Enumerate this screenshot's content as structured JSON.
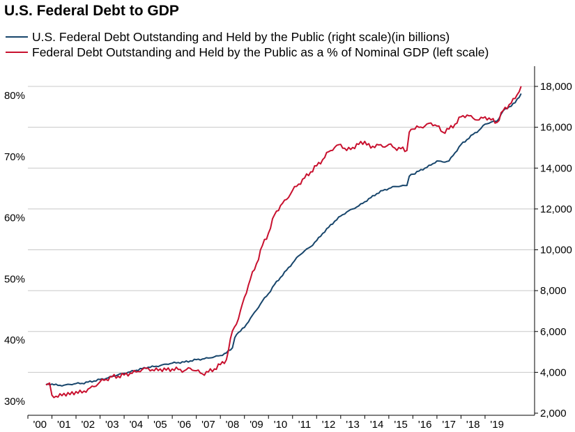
{
  "chart_data": {
    "type": "line",
    "title": "U.S. Federal Debt to GDP",
    "series": [
      {
        "name": "U.S. Federal Debt Outstanding and Held by the Public (right scale)(in billions)",
        "axis": "right",
        "color": "#17456b",
        "points": [
          [
            2000.75,
            3400
          ],
          [
            2001.0,
            3430
          ],
          [
            2001.25,
            3360
          ],
          [
            2001.5,
            3370
          ],
          [
            2001.75,
            3410
          ],
          [
            2002.0,
            3450
          ],
          [
            2002.25,
            3460
          ],
          [
            2002.5,
            3520
          ],
          [
            2002.75,
            3580
          ],
          [
            2003.0,
            3650
          ],
          [
            2003.25,
            3700
          ],
          [
            2003.5,
            3800
          ],
          [
            2003.75,
            3880
          ],
          [
            2004.0,
            3950
          ],
          [
            2004.25,
            4020
          ],
          [
            2004.5,
            4100
          ],
          [
            2004.75,
            4180
          ],
          [
            2005.0,
            4250
          ],
          [
            2005.25,
            4280
          ],
          [
            2005.5,
            4330
          ],
          [
            2005.75,
            4400
          ],
          [
            2006.0,
            4450
          ],
          [
            2006.25,
            4480
          ],
          [
            2006.5,
            4500
          ],
          [
            2006.75,
            4560
          ],
          [
            2007.0,
            4620
          ],
          [
            2007.25,
            4650
          ],
          [
            2007.5,
            4700
          ],
          [
            2007.75,
            4760
          ],
          [
            2008.0,
            4820
          ],
          [
            2008.25,
            4950
          ],
          [
            2008.5,
            5200
          ],
          [
            2008.6,
            5700
          ],
          [
            2008.75,
            5950
          ],
          [
            2009.0,
            6200
          ],
          [
            2009.25,
            6650
          ],
          [
            2009.5,
            7050
          ],
          [
            2009.75,
            7500
          ],
          [
            2010.0,
            7850
          ],
          [
            2010.25,
            8300
          ],
          [
            2010.5,
            8650
          ],
          [
            2010.75,
            9000
          ],
          [
            2011.0,
            9350
          ],
          [
            2011.25,
            9700
          ],
          [
            2011.5,
            9950
          ],
          [
            2011.75,
            10150
          ],
          [
            2012.0,
            10450
          ],
          [
            2012.25,
            10800
          ],
          [
            2012.5,
            11100
          ],
          [
            2012.75,
            11400
          ],
          [
            2013.0,
            11650
          ],
          [
            2013.25,
            11850
          ],
          [
            2013.5,
            12000
          ],
          [
            2013.75,
            12150
          ],
          [
            2014.0,
            12350
          ],
          [
            2014.25,
            12550
          ],
          [
            2014.5,
            12750
          ],
          [
            2014.75,
            12900
          ],
          [
            2015.0,
            13000
          ],
          [
            2015.25,
            13100
          ],
          [
            2015.5,
            13120
          ],
          [
            2015.75,
            13150
          ],
          [
            2015.85,
            13600
          ],
          [
            2016.0,
            13700
          ],
          [
            2016.25,
            13850
          ],
          [
            2016.5,
            14000
          ],
          [
            2016.75,
            14150
          ],
          [
            2017.0,
            14350
          ],
          [
            2017.25,
            14300
          ],
          [
            2017.5,
            14350
          ],
          [
            2017.75,
            14750
          ],
          [
            2018.0,
            15150
          ],
          [
            2018.25,
            15400
          ],
          [
            2018.5,
            15650
          ],
          [
            2018.75,
            15850
          ],
          [
            2019.0,
            16150
          ],
          [
            2019.25,
            16250
          ],
          [
            2019.5,
            16300
          ],
          [
            2019.75,
            16800
          ],
          [
            2020.0,
            17000
          ],
          [
            2020.25,
            17200
          ],
          [
            2020.5,
            17650
          ]
        ]
      },
      {
        "name": "Federal Debt Outstanding and Held by the Public as a % of Nominal GDP (left scale)",
        "axis": "left",
        "color": "#c8102e",
        "points": [
          [
            2000.75,
            32.7
          ],
          [
            2000.9,
            33.0
          ],
          [
            2001.0,
            31.0
          ],
          [
            2001.25,
            30.7
          ],
          [
            2001.5,
            31.3
          ],
          [
            2001.75,
            31.1
          ],
          [
            2002.0,
            31.6
          ],
          [
            2002.25,
            31.4
          ],
          [
            2002.5,
            32.0
          ],
          [
            2002.75,
            32.4
          ],
          [
            2003.0,
            33.2
          ],
          [
            2003.25,
            33.6
          ],
          [
            2003.5,
            34.0
          ],
          [
            2003.75,
            34.1
          ],
          [
            2004.0,
            34.3
          ],
          [
            2004.25,
            34.6
          ],
          [
            2004.5,
            34.8
          ],
          [
            2004.75,
            35.2
          ],
          [
            2005.0,
            35.4
          ],
          [
            2005.25,
            35.0
          ],
          [
            2005.5,
            35.3
          ],
          [
            2005.75,
            35.1
          ],
          [
            2006.0,
            35.3
          ],
          [
            2006.25,
            35.2
          ],
          [
            2006.5,
            35.0
          ],
          [
            2006.75,
            35.4
          ],
          [
            2007.0,
            35.0
          ],
          [
            2007.25,
            34.5
          ],
          [
            2007.5,
            34.8
          ],
          [
            2007.75,
            35.3
          ],
          [
            2008.0,
            36.0
          ],
          [
            2008.25,
            36.8
          ],
          [
            2008.5,
            41.5
          ],
          [
            2008.75,
            43.5
          ],
          [
            2009.0,
            47.0
          ],
          [
            2009.25,
            50.0
          ],
          [
            2009.5,
            52.5
          ],
          [
            2009.75,
            55.5
          ],
          [
            2010.0,
            57.5
          ],
          [
            2010.25,
            60.5
          ],
          [
            2010.5,
            62.0
          ],
          [
            2010.75,
            63.0
          ],
          [
            2011.0,
            64.5
          ],
          [
            2011.25,
            65.5
          ],
          [
            2011.5,
            66.5
          ],
          [
            2011.75,
            67.5
          ],
          [
            2012.0,
            68.5
          ],
          [
            2012.25,
            69.5
          ],
          [
            2012.5,
            70.8
          ],
          [
            2012.75,
            71.5
          ],
          [
            2013.0,
            72.0
          ],
          [
            2013.25,
            71.0
          ],
          [
            2013.5,
            71.5
          ],
          [
            2013.75,
            72.0
          ],
          [
            2014.0,
            72.5
          ],
          [
            2014.25,
            71.4
          ],
          [
            2014.5,
            72.0
          ],
          [
            2014.75,
            71.6
          ],
          [
            2015.0,
            72.0
          ],
          [
            2015.25,
            71.4
          ],
          [
            2015.5,
            71.3
          ],
          [
            2015.75,
            71.0
          ],
          [
            2015.85,
            74.0
          ],
          [
            2016.0,
            74.5
          ],
          [
            2016.25,
            74.8
          ],
          [
            2016.5,
            75.0
          ],
          [
            2016.75,
            75.5
          ],
          [
            2017.0,
            75.0
          ],
          [
            2017.25,
            74.0
          ],
          [
            2017.5,
            74.5
          ],
          [
            2017.75,
            75.3
          ],
          [
            2018.0,
            76.5
          ],
          [
            2018.25,
            76.8
          ],
          [
            2018.5,
            76.3
          ],
          [
            2018.75,
            76.0
          ],
          [
            2019.0,
            76.5
          ],
          [
            2019.25,
            76.0
          ],
          [
            2019.5,
            75.6
          ],
          [
            2019.75,
            77.5
          ],
          [
            2020.0,
            78.5
          ],
          [
            2020.25,
            79.5
          ],
          [
            2020.5,
            81.5
          ]
        ]
      }
    ],
    "x_ticks": [
      "'00",
      "'01",
      "'02",
      "'03",
      "'04",
      "'05",
      "'06",
      "'07",
      "'08",
      "'09",
      "'10",
      "'11",
      "'12",
      "'13",
      "'14",
      "'15",
      "'16",
      "'17",
      "'18",
      "'19"
    ],
    "xlim": [
      2000,
      2021
    ],
    "y_left": {
      "ticks": [
        "30%",
        "40%",
        "50%",
        "60%",
        "70%",
        "80%"
      ],
      "values": [
        30,
        40,
        50,
        60,
        70,
        80
      ],
      "range": [
        29.5,
        84
      ]
    },
    "y_right": {
      "ticks": [
        "2,000",
        "4,000",
        "6,000",
        "8,000",
        "10,000",
        "12,000",
        "14,000",
        "16,000",
        "18,000"
      ],
      "values": [
        2000,
        4000,
        6000,
        8000,
        10000,
        12000,
        14000,
        16000,
        18000
      ],
      "range": [
        2000,
        19000
      ]
    },
    "grid": true
  }
}
